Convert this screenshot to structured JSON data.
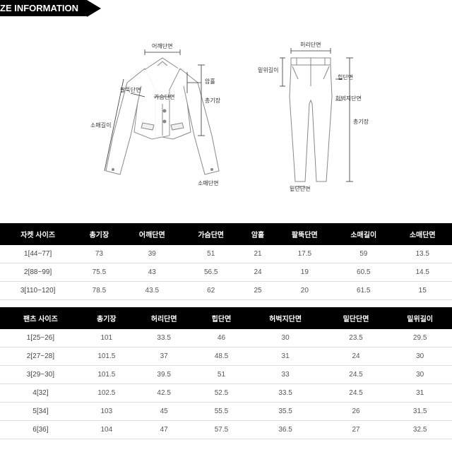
{
  "header": {
    "title": "ZE INFORMATION"
  },
  "diagram": {
    "jacket_labels": {
      "shoulder": "어깨단면",
      "sleeve_open": "소매길이",
      "arm_hole": "팔뚝단면",
      "chest": "가슴단면",
      "armhole2": "암홀",
      "length": "총기장",
      "cuff": "소매단면"
    },
    "pants_labels": {
      "waist": "허리단면",
      "rise": "밑위길이",
      "hip": "힙단면",
      "thigh": "허벅지단면",
      "length": "총기장",
      "hem": "밑단단면"
    }
  },
  "jacket_table": {
    "columns": [
      "자켓 사이즈",
      "총기장",
      "어깨단면",
      "가슴단면",
      "암홀",
      "팔뚝단면",
      "소매길이",
      "소매단면"
    ],
    "rows": [
      [
        "1[44~77]",
        "73",
        "39",
        "51",
        "21",
        "17.5",
        "59",
        "13.5"
      ],
      [
        "2[88~99]",
        "75.5",
        "43",
        "56.5",
        "24",
        "19",
        "60.5",
        "14.5"
      ],
      [
        "3[110~120]",
        "78.5",
        "43.5",
        "62",
        "25",
        "20",
        "61.5",
        "15"
      ]
    ]
  },
  "pants_table": {
    "columns": [
      "팬츠 사이즈",
      "총기장",
      "허리단면",
      "힙단면",
      "허벅지단면",
      "밑단단면",
      "밑위길이"
    ],
    "rows": [
      [
        "1[25~26]",
        "101",
        "33.5",
        "46",
        "30",
        "23.5",
        "29.5"
      ],
      [
        "2[27~28]",
        "101.5",
        "37",
        "48.5",
        "31",
        "24",
        "30"
      ],
      [
        "3[29~30]",
        "101.5",
        "39.5",
        "51",
        "33",
        "24.5",
        "30"
      ],
      [
        "4[32]",
        "102.5",
        "42.5",
        "52.5",
        "33.5",
        "24.5",
        "31"
      ],
      [
        "5[34]",
        "103",
        "45",
        "55.5",
        "35.5",
        "26",
        "31.5"
      ],
      [
        "6[36]",
        "104",
        "47",
        "57.5",
        "36.5",
        "27",
        "32.5"
      ]
    ]
  }
}
